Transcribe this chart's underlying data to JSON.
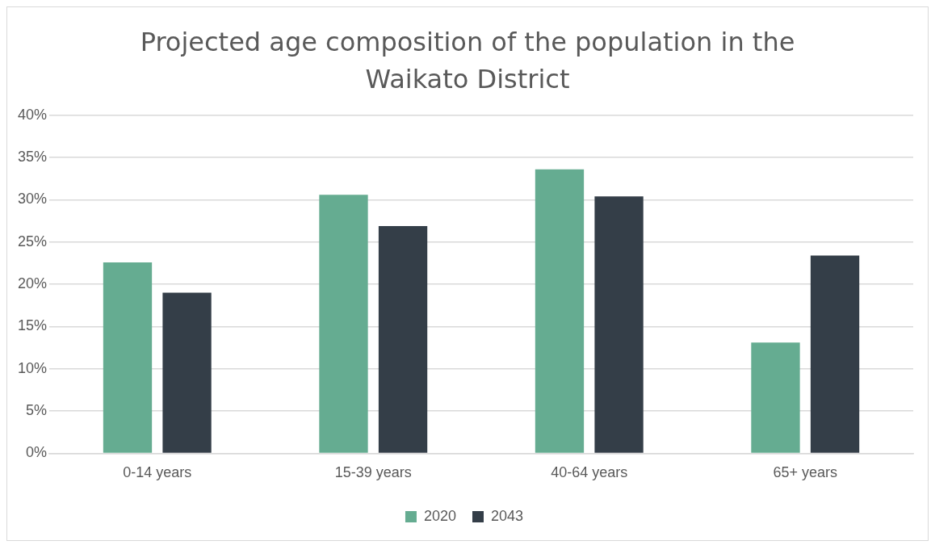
{
  "chart_data": {
    "type": "bar",
    "title": "Projected age composition of the population in the Waikato District",
    "categories": [
      "0-14 years",
      "15-39 years",
      "40-64 years",
      "65+ years"
    ],
    "series": [
      {
        "name": "2020",
        "color": "#65ac91",
        "values": [
          22.6,
          30.6,
          33.6,
          13.1
        ]
      },
      {
        "name": "2043",
        "color": "#343e48",
        "values": [
          19.0,
          26.9,
          30.4,
          23.4
        ]
      }
    ],
    "ylim": [
      0,
      40
    ],
    "yticks": [
      {
        "value": 0,
        "label": "0%"
      },
      {
        "value": 5,
        "label": "5%"
      },
      {
        "value": 10,
        "label": "10%"
      },
      {
        "value": 15,
        "label": "15%"
      },
      {
        "value": 20,
        "label": "20%"
      },
      {
        "value": 25,
        "label": "25%"
      },
      {
        "value": 30,
        "label": "30%"
      },
      {
        "value": 35,
        "label": "35%"
      },
      {
        "value": 40,
        "label": "40%"
      }
    ],
    "grid": "y",
    "legend": "bottom"
  }
}
